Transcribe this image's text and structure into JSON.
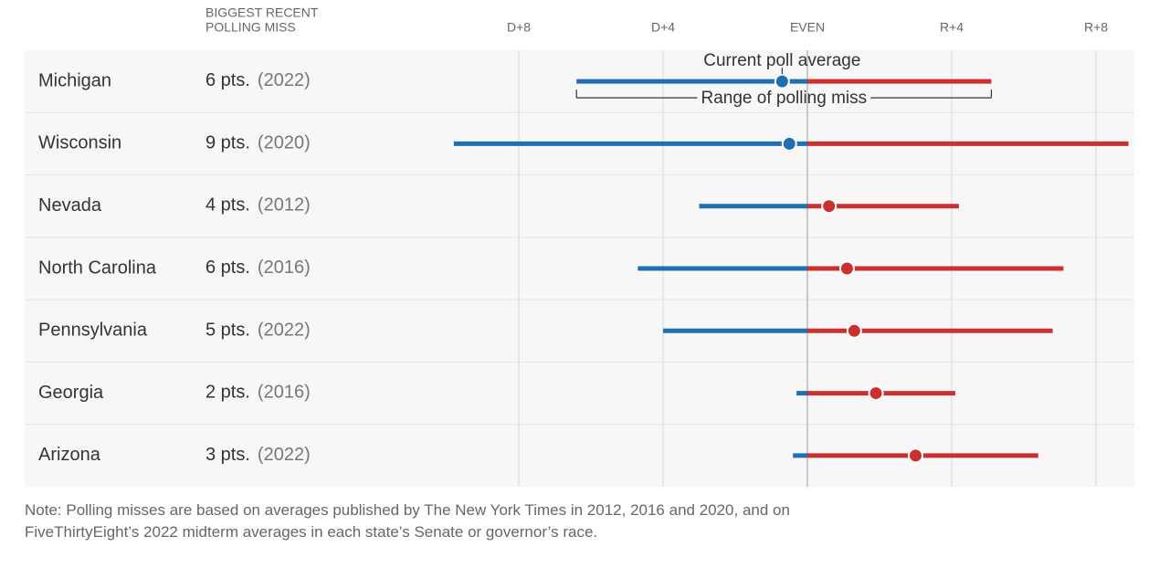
{
  "chart_data": {
    "type": "dot-range",
    "column_header": [
      "BIGGEST RECENT",
      "POLLING MISS"
    ],
    "categories": [
      "Michigan",
      "Wisconsin",
      "Nevada",
      "North Carolina",
      "Pennsylvania",
      "Georgia",
      "Arizona"
    ],
    "miss_labels": [
      "6 pts.",
      "9 pts.",
      "4 pts.",
      "6 pts.",
      "5 pts.",
      "2 pts.",
      "3 pts."
    ],
    "miss_years": [
      "(2022)",
      "(2020)",
      "(2012)",
      "(2016)",
      "(2022)",
      "(2016)",
      "(2022)"
    ],
    "averages": [
      -0.7,
      -0.5,
      0.6,
      1.1,
      1.3,
      1.9,
      3.0
    ],
    "lows": [
      -6.4,
      -9.8,
      -3.0,
      -4.7,
      -4.0,
      -0.3,
      -0.4
    ],
    "highs": [
      5.1,
      8.9,
      4.2,
      7.1,
      6.8,
      4.1,
      6.4
    ],
    "dem_color": "#1f6fb2",
    "rep_color": "#c9302f",
    "xlim": [
      -10,
      9
    ],
    "xticks": [
      {
        "value": -8,
        "label": "D+8"
      },
      {
        "value": -4,
        "label": "D+4"
      },
      {
        "value": 0,
        "label": "EVEN"
      },
      {
        "value": 4,
        "label": "R+4"
      },
      {
        "value": 8,
        "label": "R+8"
      }
    ],
    "grid": true,
    "annotations": [
      "Current poll average",
      "Range of polling miss"
    ],
    "note": [
      "Note: Polling misses are based on averages published by The New York Times in 2012, 2016 and 2020, and on",
      "FiveThirtyEight’s 2022 midterm averages in each state’s Senate or governor’s race."
    ]
  }
}
